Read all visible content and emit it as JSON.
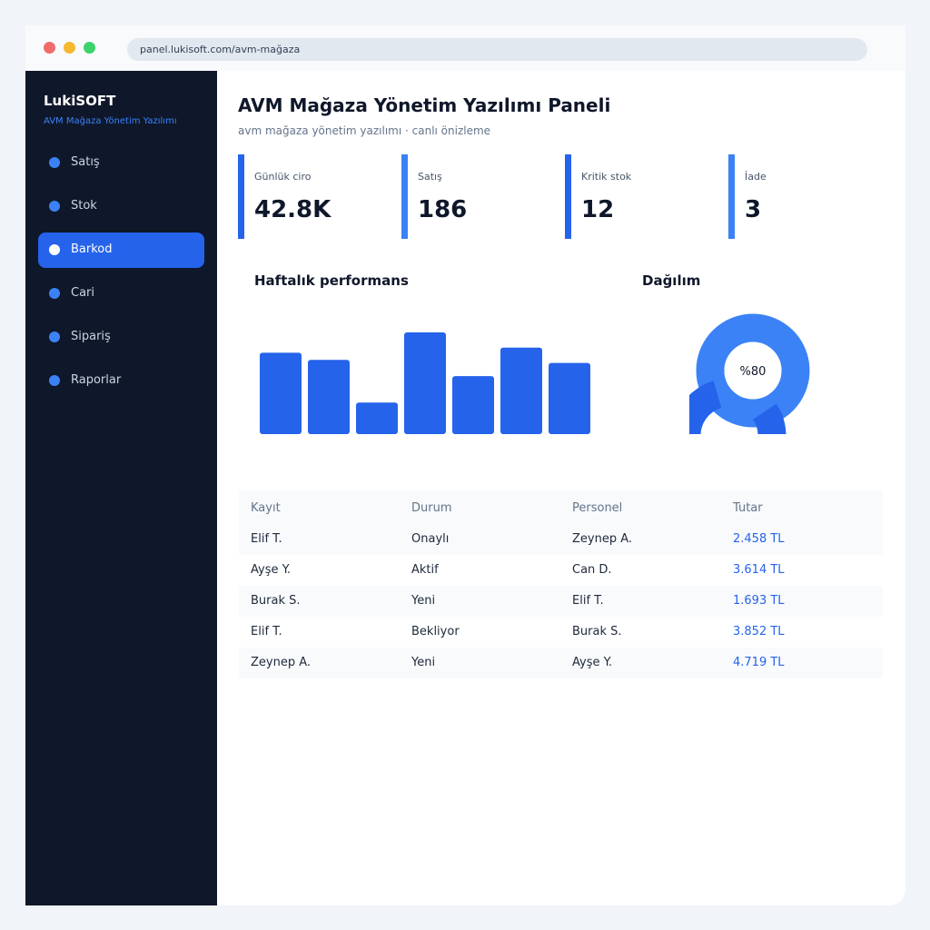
{
  "browser": {
    "url": "panel.lukisoft.com/avm-mağaza"
  },
  "sidebar": {
    "brand": "LukiSOFT",
    "brand_sub": "AVM Mağaza Yönetim Yazılımı",
    "items": [
      {
        "label": "Satış",
        "active": false
      },
      {
        "label": "Stok",
        "active": false
      },
      {
        "label": "Barkod",
        "active": true
      },
      {
        "label": "Cari",
        "active": false
      },
      {
        "label": "Sipariş",
        "active": false
      },
      {
        "label": "Raporlar",
        "active": false
      }
    ]
  },
  "header": {
    "title": "AVM Mağaza Yönetim Yazılımı Paneli",
    "subtitle": "avm mağaza yönetim yazılımı · canlı önizleme"
  },
  "kpis": [
    {
      "label": "Günlük ciro",
      "value": "42.8K"
    },
    {
      "label": "Satış",
      "value": "186"
    },
    {
      "label": "Kritik stok",
      "value": "12"
    },
    {
      "label": "İade",
      "value": "3"
    }
  ],
  "charts": {
    "performance_title": "Haftalık performans",
    "distribution_title": "Dağılım",
    "donut_label": "%80"
  },
  "chart_data": [
    {
      "type": "bar",
      "title": "Haftalık performans",
      "values": [
        80,
        73,
        31,
        100,
        57,
        85,
        70
      ],
      "ylim": [
        0,
        100
      ],
      "grid": false
    },
    {
      "type": "pie",
      "title": "Dağılım",
      "values": [
        80,
        20
      ],
      "center_label": "%80"
    }
  ],
  "table": {
    "headers": [
      "Kayıt",
      "Durum",
      "Personel",
      "Tutar"
    ],
    "rows": [
      [
        "Elif T.",
        "Onaylı",
        "Zeynep A.",
        "2.458 TL"
      ],
      [
        "Ayşe Y.",
        "Aktif",
        "Can D.",
        "3.614 TL"
      ],
      [
        "Burak S.",
        "Yeni",
        "Elif T.",
        "1.693 TL"
      ],
      [
        "Elif T.",
        "Bekliyor",
        "Burak S.",
        "3.852 TL"
      ],
      [
        "Zeynep A.",
        "Yeni",
        "Ayşe Y.",
        "4.719 TL"
      ]
    ]
  },
  "colors": {
    "accent": "#2563eb",
    "accent_light": "#3b82f6",
    "sidebar_bg": "#0f172a"
  }
}
